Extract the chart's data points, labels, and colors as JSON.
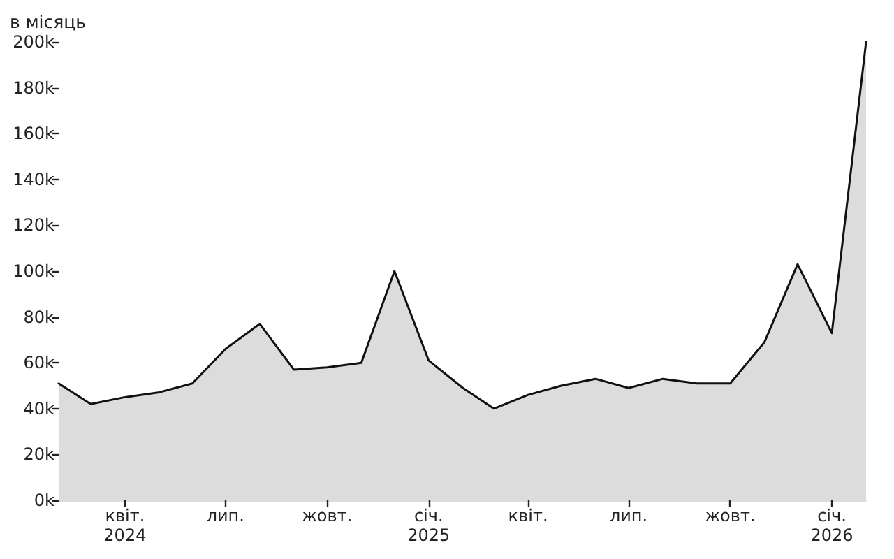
{
  "chart_data": {
    "type": "area",
    "ylabel": "в місяць",
    "x": [
      "2024-02",
      "2024-03",
      "2024-04",
      "2024-05",
      "2024-06",
      "2024-07",
      "2024-08",
      "2024-09",
      "2024-10",
      "2024-11",
      "2024-12",
      "2025-01",
      "2025-02",
      "2025-03",
      "2025-04",
      "2025-05",
      "2025-06",
      "2025-07",
      "2025-08",
      "2025-09",
      "2025-10",
      "2025-11",
      "2025-12",
      "2026-01",
      "2026-02"
    ],
    "values": [
      51000,
      42000,
      45000,
      47000,
      51000,
      66000,
      77000,
      57000,
      58000,
      60000,
      100000,
      61000,
      49000,
      40000,
      46000,
      50000,
      53000,
      49000,
      53000,
      51000,
      51000,
      69000,
      103000,
      73000,
      200000
    ],
    "color": "#dcdcdc",
    "xlim": [
      "2024-02",
      "2026-02"
    ],
    "xticks": [
      {
        "value": "2024-04",
        "label": "квіт.\n2024"
      },
      {
        "value": "2024-07",
        "label": "лип."
      },
      {
        "value": "2024-10",
        "label": "жовт."
      },
      {
        "value": "2025-01",
        "label": "січ.\n2025"
      },
      {
        "value": "2025-04",
        "label": "квіт."
      },
      {
        "value": "2025-07",
        "label": "лип."
      },
      {
        "value": "2025-10",
        "label": "жовт."
      },
      {
        "value": "2026-01",
        "label": "січ.\n2026"
      }
    ],
    "ylim": [
      0,
      200000
    ],
    "yticks": [
      {
        "value": 0,
        "label": "0k"
      },
      {
        "value": 20000,
        "label": "20k"
      },
      {
        "value": 40000,
        "label": "40k"
      },
      {
        "value": 60000,
        "label": "60k"
      },
      {
        "value": 80000,
        "label": "80k"
      },
      {
        "value": 100000,
        "label": "100k"
      },
      {
        "value": 120000,
        "label": "120k"
      },
      {
        "value": 140000,
        "label": "140k"
      },
      {
        "value": 160000,
        "label": "160k"
      },
      {
        "value": 180000,
        "label": "180k"
      },
      {
        "value": 200000,
        "label": "200k"
      }
    ],
    "grid": false,
    "marker": "none"
  }
}
